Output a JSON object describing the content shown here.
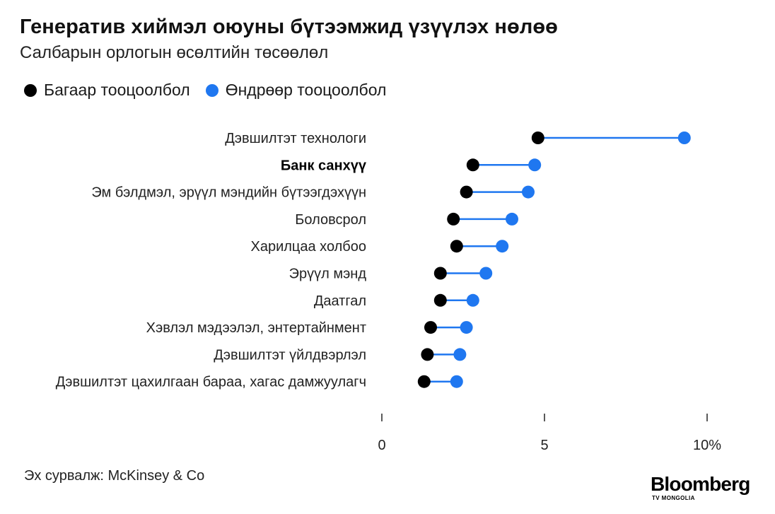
{
  "title": "Генератив хиймэл оюуны бүтээмжид үзүүлэх нөлөө",
  "subtitle": "Салбарын орлогын өсөлтийн төсөөлөл",
  "legend": {
    "low_label": "Багаар тооцоолбол",
    "high_label": "Өндрөөр тооцоолбол"
  },
  "colors": {
    "low": "#000000",
    "high": "#1f77f0",
    "connector": "#1f77f0"
  },
  "source": "Эх сурвалж: McKinsey & Co",
  "brand": {
    "name": "Bloomberg",
    "sub": "TV MONGOLIA"
  },
  "chart_data": {
    "type": "dumbbell",
    "xlim": [
      0,
      10
    ],
    "xticks": [
      {
        "value": 0,
        "label": "0"
      },
      {
        "value": 5,
        "label": "5"
      },
      {
        "value": 10,
        "label": "10%"
      }
    ],
    "series": [
      {
        "name": "Багаар тооцоолбол",
        "key": "low"
      },
      {
        "name": "Өндрөөр тооцоолбол",
        "key": "high"
      }
    ],
    "rows": [
      {
        "label": "Дэвшилтэт технологи",
        "low": 4.8,
        "high": 9.3,
        "emphasis": false
      },
      {
        "label": "Банк санхүү",
        "low": 2.8,
        "high": 4.7,
        "emphasis": true
      },
      {
        "label": "Эм бэлдмэл, эрүүл мэндийн бүтээгдэхүүн",
        "low": 2.6,
        "high": 4.5,
        "emphasis": false
      },
      {
        "label": "Боловсрол",
        "low": 2.2,
        "high": 4.0,
        "emphasis": false
      },
      {
        "label": "Харилцаа холбоо",
        "low": 2.3,
        "high": 3.7,
        "emphasis": false
      },
      {
        "label": "Эрүүл мэнд",
        "low": 1.8,
        "high": 3.2,
        "emphasis": false
      },
      {
        "label": "Даатгал",
        "low": 1.8,
        "high": 2.8,
        "emphasis": false
      },
      {
        "label": "Хэвлэл мэдээлэл, энтертайнмент",
        "low": 1.5,
        "high": 2.6,
        "emphasis": false
      },
      {
        "label": "Дэвшилтэт үйлдвэрлэл",
        "low": 1.4,
        "high": 2.4,
        "emphasis": false
      },
      {
        "label": "Дэвшилтэт цахилгаан бараа, хагас дамжуулагч",
        "low": 1.3,
        "high": 2.3,
        "emphasis": false
      }
    ]
  }
}
